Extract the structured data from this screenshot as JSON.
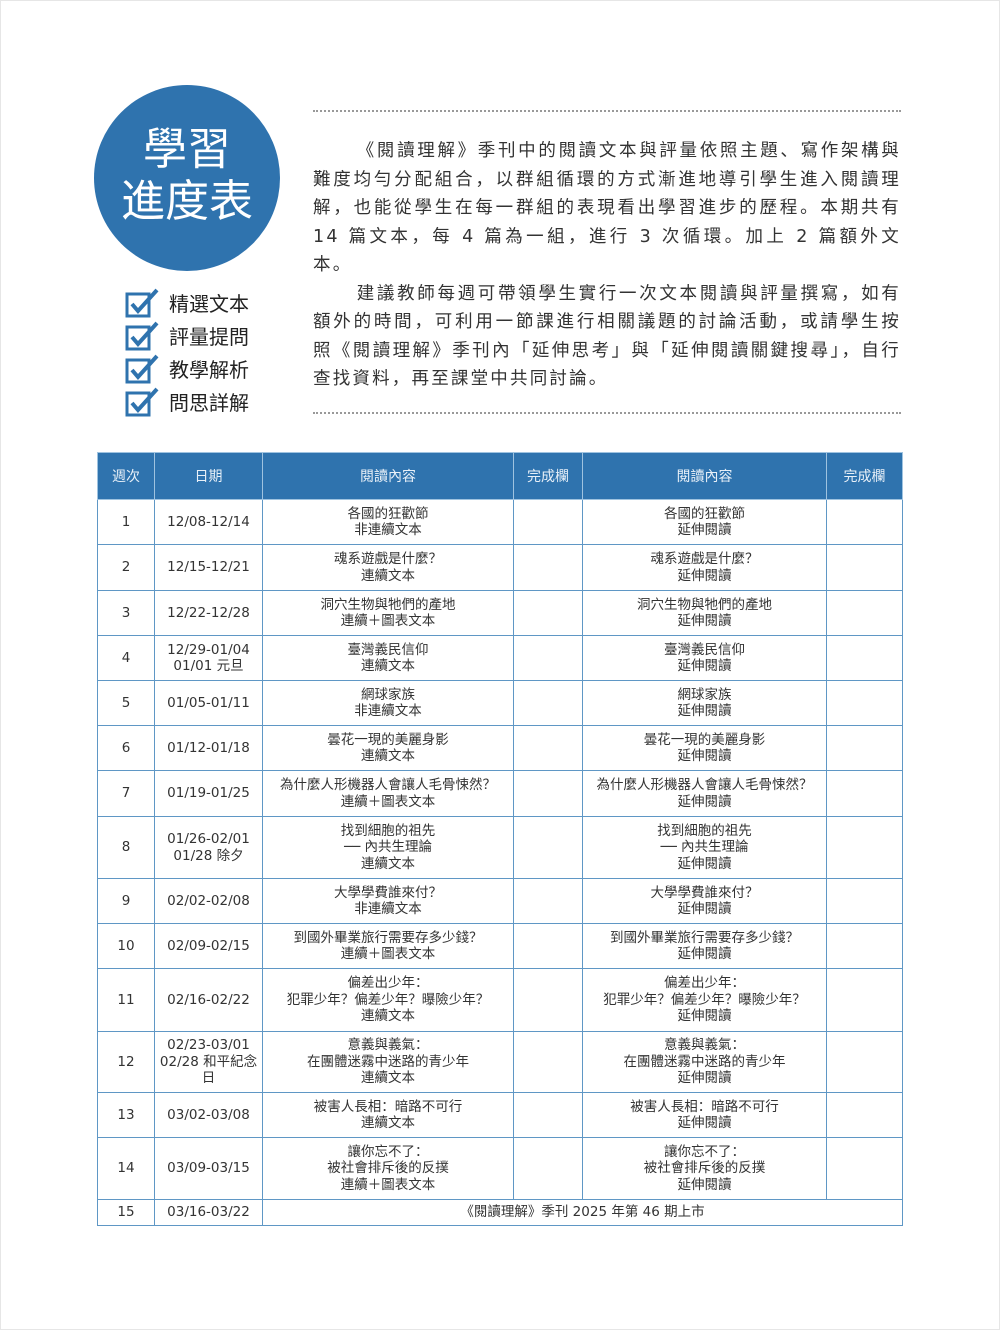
{
  "title": {
    "line1": "學習",
    "line2": "進度表"
  },
  "checklist": [
    "精選文本",
    "評量提問",
    "教學解析",
    "問思詳解"
  ],
  "intro": [
    "《閱讀理解》季刊中的閱讀文本與評量依照主題、寫作架構與難度均勻分配組合，以群組循環的方式漸進地導引學生進入閱讀理解，也能從學生在每一群組的表現看出學習進步的歷程。本期共有 14 篇文本，每 4 篇為一組，進行 3 次循環。加上 2 篇額外文本。",
    "建議教師每週可帶領學生實行一次文本閱讀與評量撰寫，如有額外的時間，可利用一節課進行相關議題的討論活動，或請學生按照《閱讀理解》季刊內「延伸思考」與「延伸閱讀關鍵搜尋」，自行查找資料，再至課堂中共同討論。"
  ],
  "table": {
    "headers": [
      "週次",
      "日期",
      "閱讀內容",
      "完成欄",
      "閱讀內容",
      "完成欄"
    ],
    "rows": [
      {
        "week": "1",
        "date": [
          "12/08-12/14"
        ],
        "content": [
          "各國的狂歡節",
          "非連續文本"
        ],
        "extended": [
          "各國的狂歡節",
          "延伸閱讀"
        ]
      },
      {
        "week": "2",
        "date": [
          "12/15-12/21"
        ],
        "content": [
          "魂系遊戲是什麼？",
          "連續文本"
        ],
        "extended": [
          "魂系遊戲是什麼？",
          "延伸閱讀"
        ]
      },
      {
        "week": "3",
        "date": [
          "12/22-12/28"
        ],
        "content": [
          "洞穴生物與牠們的產地",
          "連續＋圖表文本"
        ],
        "extended": [
          "洞穴生物與牠們的產地",
          "延伸閱讀"
        ]
      },
      {
        "week": "4",
        "date": [
          "12/29-01/04",
          "01/01 元旦"
        ],
        "content": [
          "臺灣義民信仰",
          "連續文本"
        ],
        "extended": [
          "臺灣義民信仰",
          "延伸閱讀"
        ]
      },
      {
        "week": "5",
        "date": [
          "01/05-01/11"
        ],
        "content": [
          "網球家族",
          "非連續文本"
        ],
        "extended": [
          "網球家族",
          "延伸閱讀"
        ]
      },
      {
        "week": "6",
        "date": [
          "01/12-01/18"
        ],
        "content": [
          "曇花一現的美麗身影",
          "連續文本"
        ],
        "extended": [
          "曇花一現的美麗身影",
          "延伸閱讀"
        ]
      },
      {
        "week": "7",
        "date": [
          "01/19-01/25"
        ],
        "content": [
          "為什麼人形機器人會讓人毛骨悚然？",
          "連續＋圖表文本"
        ],
        "extended": [
          "為什麼人形機器人會讓人毛骨悚然？",
          "延伸閱讀"
        ]
      },
      {
        "week": "8",
        "date": [
          "01/26-02/01",
          "01/28 除夕"
        ],
        "content": [
          "找到細胞的祖先",
          "── 內共生理論",
          "連續文本"
        ],
        "extended": [
          "找到細胞的祖先",
          "── 內共生理論",
          "延伸閱讀"
        ]
      },
      {
        "week": "9",
        "date": [
          "02/02-02/08"
        ],
        "content": [
          "大學學費誰來付？",
          "非連續文本"
        ],
        "extended": [
          "大學學費誰來付？",
          "延伸閱讀"
        ]
      },
      {
        "week": "10",
        "date": [
          "02/09-02/15"
        ],
        "content": [
          "到國外畢業旅行需要存多少錢？",
          "連續＋圖表文本"
        ],
        "extended": [
          "到國外畢業旅行需要存多少錢？",
          "延伸閱讀"
        ]
      },
      {
        "week": "11",
        "date": [
          "02/16-02/22"
        ],
        "content": [
          "偏差出少年：",
          "犯罪少年？偏差少年？曝險少年？",
          "連續文本"
        ],
        "extended": [
          "偏差出少年：",
          "犯罪少年？偏差少年？曝險少年？",
          "延伸閱讀"
        ]
      },
      {
        "week": "12",
        "date": [
          "02/23-03/01",
          "02/28 和平紀念",
          "日"
        ],
        "content": [
          "意義與義氣：",
          "在團體迷霧中迷路的青少年",
          "連續文本"
        ],
        "extended": [
          "意義與義氣：",
          "在團體迷霧中迷路的青少年",
          "延伸閱讀"
        ]
      },
      {
        "week": "13",
        "date": [
          "03/02-03/08"
        ],
        "content": [
          "被害人長相：暗路不可行",
          "連續文本"
        ],
        "extended": [
          "被害人長相：暗路不可行",
          "延伸閱讀"
        ]
      },
      {
        "week": "14",
        "date": [
          "03/09-03/15"
        ],
        "content": [
          "讓你忘不了：",
          "被社會排斥後的反撲",
          "連續＋圖表文本"
        ],
        "extended": [
          "讓你忘不了：",
          "被社會排斥後的反撲",
          "延伸閱讀"
        ]
      }
    ],
    "final_row": {
      "week": "15",
      "date": "03/16-03/22",
      "note": "《閱讀理解》季刊 2025 年第 46 期上市"
    }
  },
  "colors": {
    "accent": "#2f73ae",
    "border": "#5f97c5"
  }
}
